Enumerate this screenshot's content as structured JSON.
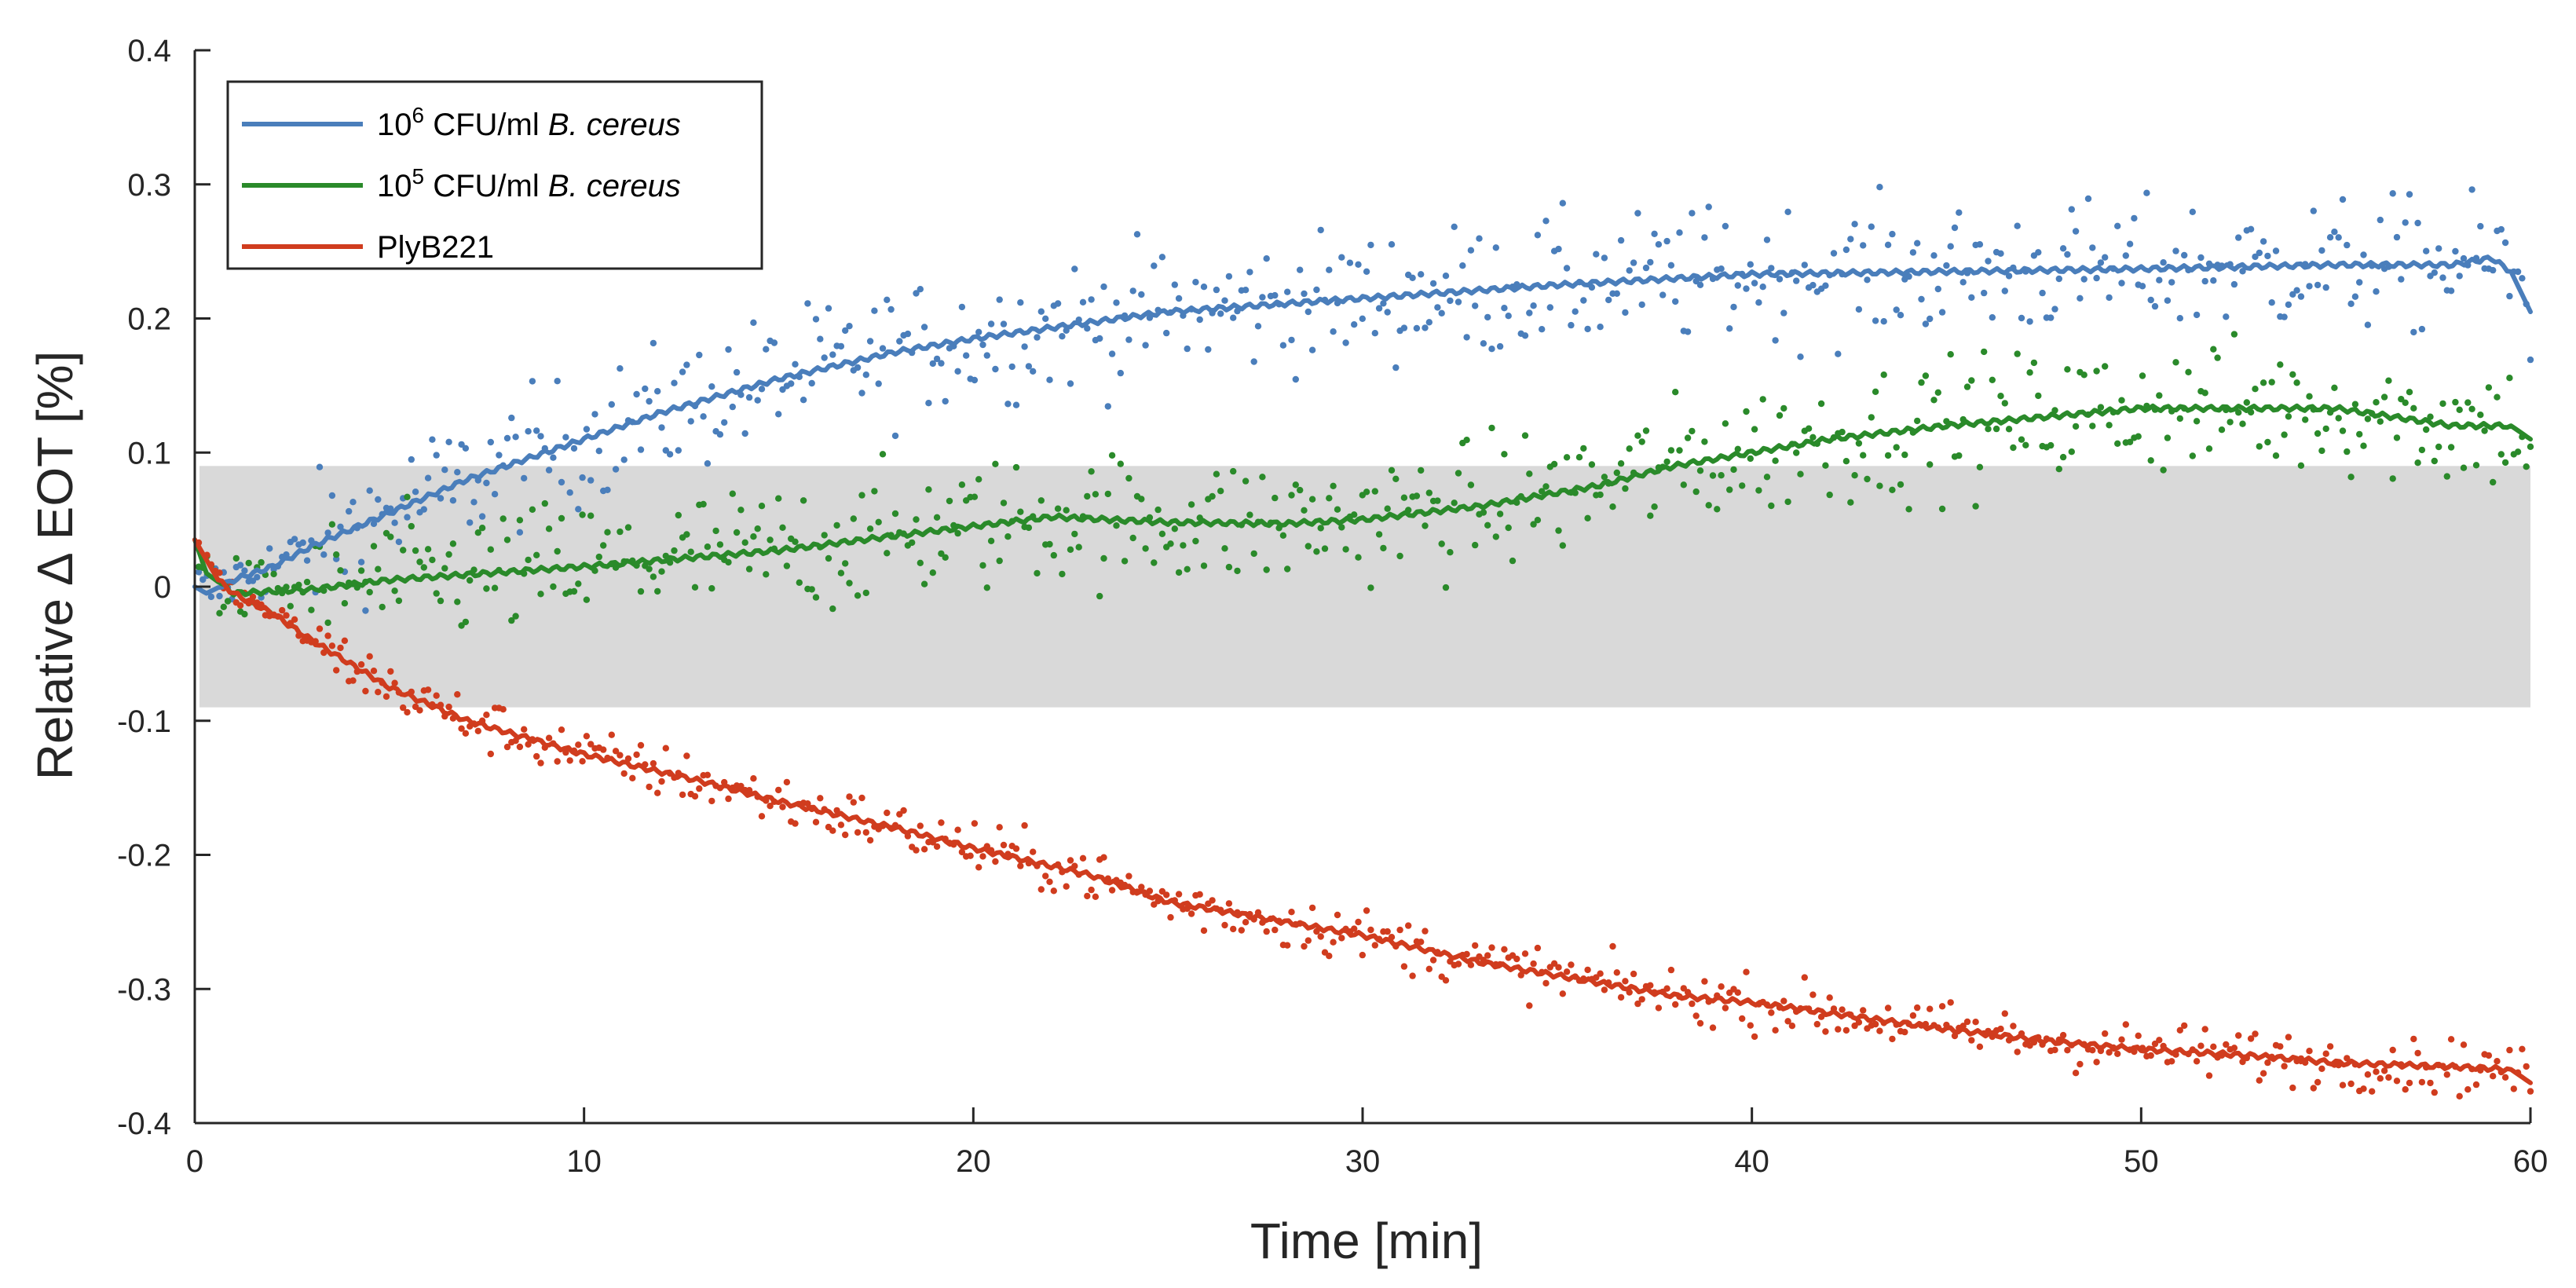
{
  "chart_data": {
    "type": "line",
    "title": "",
    "xlabel": "Time [min]",
    "ylabel": "Relative ∆ EOT [%]",
    "xlim": [
      0,
      60
    ],
    "ylim": [
      -0.4,
      0.4
    ],
    "xticks": [
      0,
      10,
      20,
      30,
      40,
      50,
      60
    ],
    "xtick_labels": [
      "0",
      "10",
      "20",
      "30",
      "40",
      "50",
      "60"
    ],
    "yticks": [
      0.4,
      0.3,
      0.2,
      0.1,
      0,
      -0.1,
      -0.2,
      -0.3,
      -0.4
    ],
    "ytick_labels": [
      "0.4",
      "0.3",
      "0.2",
      "0.1",
      "0",
      "-0.1",
      "-0.2",
      "-0.3",
      "-0.4"
    ],
    "grid": false,
    "legend_position": "top-left",
    "noise_band": {
      "ymin": -0.09,
      "ymax": 0.09,
      "color": "#d9d9d9"
    },
    "series": [
      {
        "name": "10^6 CFU/ml B. cereus",
        "legend": {
          "base": "10",
          "sup": "6",
          "text": " CFU/ml ",
          "italic": "B. cereus"
        },
        "color": "#4a7ebb",
        "trend": {
          "x": [
            0,
            0.3,
            1,
            2,
            3,
            5,
            7,
            10,
            12,
            15,
            18,
            20,
            25,
            30,
            35,
            40,
            45,
            50,
            55,
            58,
            59,
            59.5,
            60
          ],
          "y": [
            0.0,
            -0.005,
            0.005,
            0.015,
            0.03,
            0.055,
            0.08,
            0.11,
            0.13,
            0.155,
            0.175,
            0.185,
            0.205,
            0.215,
            0.225,
            0.233,
            0.235,
            0.237,
            0.24,
            0.24,
            0.245,
            0.235,
            0.205
          ]
        },
        "scatter_noise": 0.045
      },
      {
        "name": "10^5 CFU/ml B. cereus",
        "legend": {
          "base": "10",
          "sup": "5",
          "text": " CFU/ml ",
          "italic": "B. cereus"
        },
        "color": "#2a8a2a",
        "trend": {
          "x": [
            0,
            0.3,
            1,
            3,
            5,
            10,
            15,
            18,
            22,
            25,
            28,
            30,
            33,
            36,
            38,
            40,
            42,
            45,
            50,
            55,
            58,
            59.5,
            60
          ],
          "y": [
            0.035,
            0.01,
            -0.005,
            -0.002,
            0.005,
            0.015,
            0.027,
            0.038,
            0.052,
            0.048,
            0.047,
            0.05,
            0.06,
            0.075,
            0.09,
            0.1,
            0.11,
            0.12,
            0.133,
            0.133,
            0.12,
            0.12,
            0.11
          ]
        },
        "scatter_noise": 0.045
      },
      {
        "name": "PlyB221",
        "legend": {
          "base": "",
          "sup": "",
          "text": "PlyB221",
          "italic": ""
        },
        "color": "#d03c1e",
        "trend": {
          "x": [
            0,
            0.3,
            0.6,
            1,
            2,
            3,
            5,
            7,
            10,
            13,
            15,
            18,
            20,
            23,
            25,
            28,
            30,
            33,
            35,
            38,
            40,
            43,
            45,
            48,
            50,
            53,
            55,
            58,
            59.5,
            60
          ],
          "y": [
            0.035,
            0.02,
            0.005,
            -0.005,
            -0.02,
            -0.04,
            -0.075,
            -0.1,
            -0.125,
            -0.145,
            -0.16,
            -0.18,
            -0.195,
            -0.215,
            -0.235,
            -0.25,
            -0.26,
            -0.28,
            -0.29,
            -0.305,
            -0.31,
            -0.322,
            -0.33,
            -0.34,
            -0.345,
            -0.35,
            -0.355,
            -0.358,
            -0.36,
            -0.37
          ]
        },
        "scatter_noise": 0.018
      }
    ]
  }
}
